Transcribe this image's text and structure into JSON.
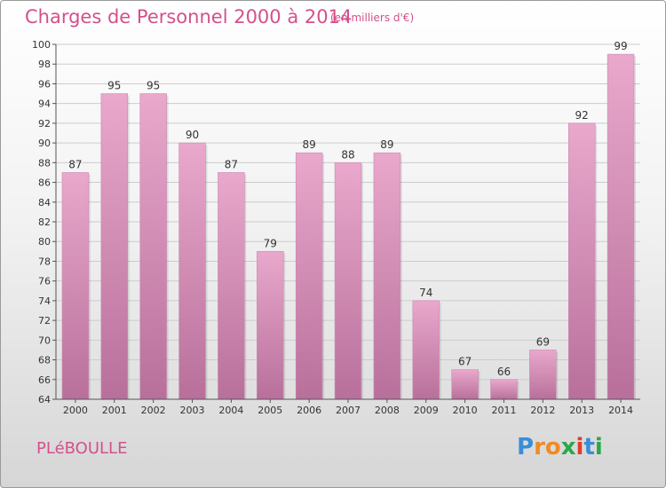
{
  "title": "Charges de Personnel 2000 à 2014",
  "unit_note": "(en milliers d'€)",
  "commune": "PLéBOULLE",
  "logo": {
    "letters": [
      "P",
      "r",
      "o",
      "x",
      "i",
      "t",
      "i"
    ],
    "colors": [
      "#3a8ed6",
      "#f08a24",
      "#f08a24",
      "#2aa84a",
      "#e23b2e",
      "#3a8ed6",
      "#2aa84a"
    ]
  },
  "colors": {
    "accent": "#d4508c",
    "bar_top": "#e9a8cc",
    "bar_bottom": "#b8709b",
    "grid": "#cccccc"
  },
  "chart_data": {
    "type": "bar",
    "categories": [
      "2000",
      "2001",
      "2002",
      "2003",
      "2004",
      "2005",
      "2006",
      "2007",
      "2008",
      "2009",
      "2010",
      "2011",
      "2012",
      "2013",
      "2014"
    ],
    "values": [
      87,
      95,
      95,
      90,
      87,
      79,
      89,
      88,
      89,
      74,
      67,
      66,
      69,
      92,
      99
    ],
    "title": "Charges de Personnel 2000 à 2014",
    "subtitle": "(en milliers d'€)",
    "xlabel": "",
    "ylabel": "",
    "ylim": [
      64,
      100
    ],
    "yticks": [
      64,
      66,
      68,
      70,
      72,
      74,
      76,
      78,
      80,
      82,
      84,
      86,
      88,
      90,
      92,
      94,
      96,
      98,
      100
    ],
    "grid": true,
    "data_labels": true
  }
}
